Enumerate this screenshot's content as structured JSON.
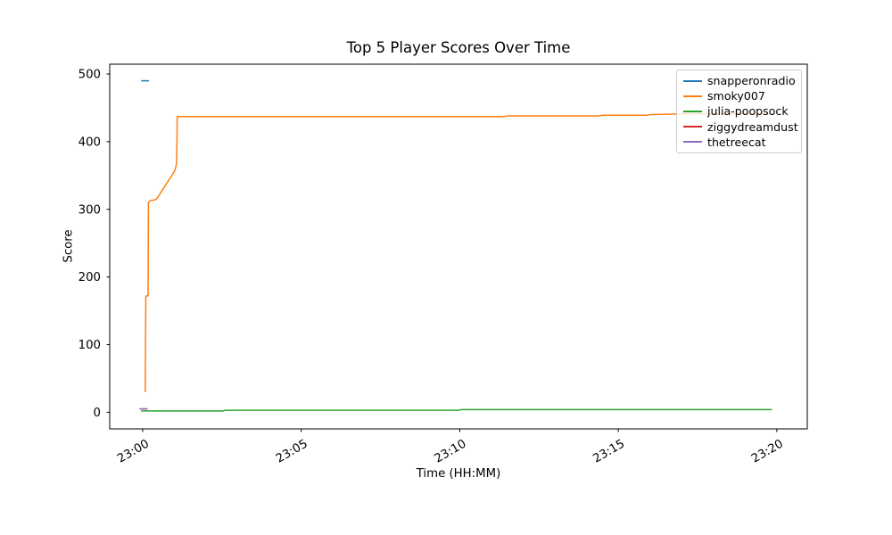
{
  "chart_data": {
    "type": "line",
    "title": "Top 5 Player Scores Over Time",
    "xlabel": "Time (HH:MM)",
    "ylabel": "Score",
    "x_unit": "minutes after 23:00",
    "xlim": [
      -1.04,
      20.96
    ],
    "ylim": [
      -24.5,
      514.5
    ],
    "grid": false,
    "legend_position": "upper right",
    "x_ticks": [
      {
        "value": 0,
        "label": "23:00"
      },
      {
        "value": 5,
        "label": "23:05"
      },
      {
        "value": 10,
        "label": "23:10"
      },
      {
        "value": 15,
        "label": "23:15"
      },
      {
        "value": 20,
        "label": "23:20"
      }
    ],
    "y_ticks": [
      {
        "value": 0,
        "label": "0"
      },
      {
        "value": 100,
        "label": "100"
      },
      {
        "value": 200,
        "label": "200"
      },
      {
        "value": 300,
        "label": "300"
      },
      {
        "value": 400,
        "label": "400"
      },
      {
        "value": 500,
        "label": "500"
      }
    ],
    "series": [
      {
        "name": "snapperonradio",
        "color": "#1f77b4",
        "points": [
          [
            -0.05,
            490
          ],
          [
            0.2,
            490
          ]
        ]
      },
      {
        "name": "smoky007",
        "color": "#ff7f0e",
        "points": [
          [
            0.08,
            30
          ],
          [
            0.1,
            170
          ],
          [
            0.11,
            172
          ],
          [
            0.17,
            172
          ],
          [
            0.18,
            310
          ],
          [
            0.24,
            313
          ],
          [
            0.4,
            314
          ],
          [
            0.48,
            318
          ],
          [
            0.6,
            327
          ],
          [
            0.75,
            338
          ],
          [
            0.95,
            352
          ],
          [
            1.02,
            358
          ],
          [
            1.07,
            368
          ],
          [
            1.09,
            437
          ],
          [
            11.4,
            437
          ],
          [
            11.5,
            438
          ],
          [
            14.4,
            438
          ],
          [
            14.5,
            439
          ],
          [
            15.9,
            439
          ],
          [
            16.0,
            440
          ],
          [
            17.0,
            441
          ],
          [
            19.9,
            441
          ]
        ]
      },
      {
        "name": "julia-poopsock",
        "color": "#2ca02c",
        "points": [
          [
            -0.05,
            2
          ],
          [
            2.55,
            2
          ],
          [
            2.6,
            3
          ],
          [
            9.95,
            3
          ],
          [
            10.05,
            4
          ],
          [
            19.85,
            4
          ]
        ]
      },
      {
        "name": "ziggydreamdust",
        "color": "#d62728",
        "points": [
          [
            -0.1,
            5
          ],
          [
            0.15,
            5
          ]
        ]
      },
      {
        "name": "thetreecat",
        "color": "#9467bd",
        "points": [
          [
            -0.1,
            5
          ],
          [
            0.15,
            5
          ]
        ]
      }
    ]
  }
}
